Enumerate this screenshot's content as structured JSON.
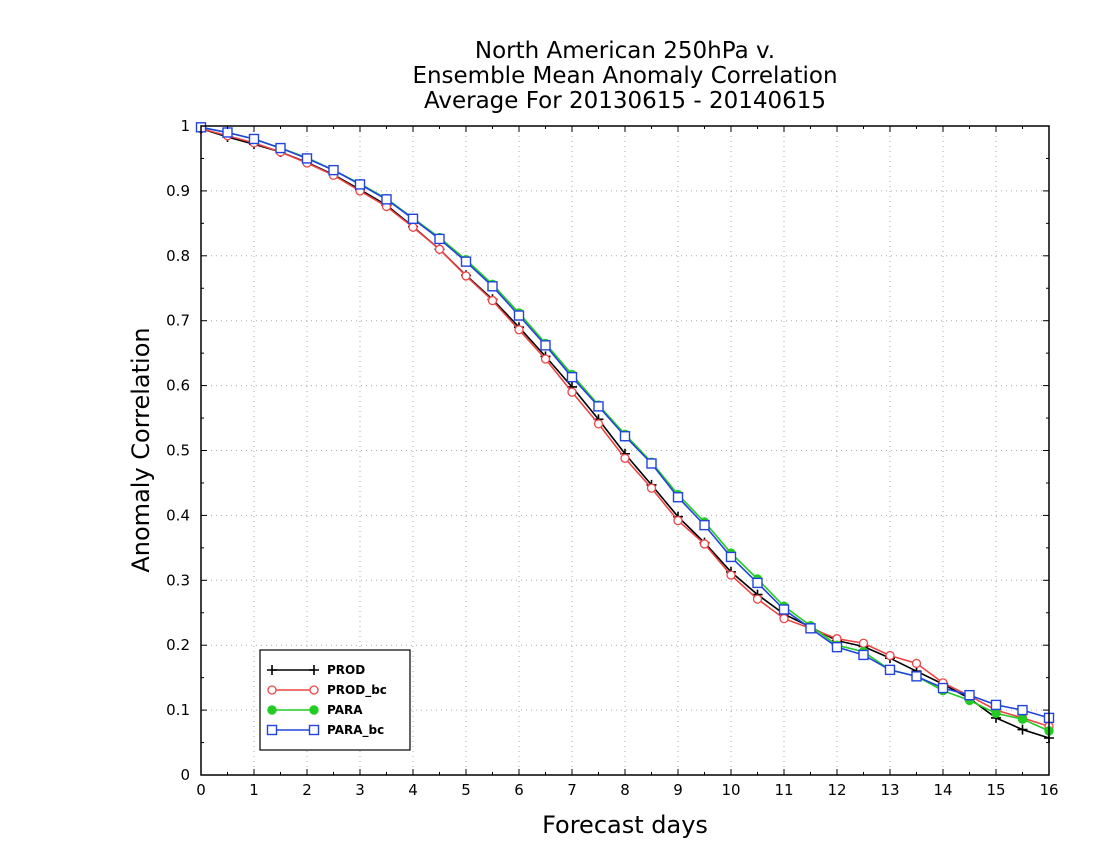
{
  "chart_data": {
    "type": "line",
    "title": [
      "North American 250hPa v.",
      "Ensemble Mean Anomaly Correlation",
      "Average For 20130615 - 20140615"
    ],
    "xlabel": "Forecast days",
    "ylabel": "Anomaly Correlation",
    "xlim": [
      0,
      16
    ],
    "ylim": [
      0,
      1
    ],
    "x_ticks": [
      "0",
      "1",
      "2",
      "3",
      "4",
      "5",
      "6",
      "7",
      "8",
      "9",
      "10",
      "11",
      "12",
      "13",
      "14",
      "15",
      "16"
    ],
    "y_ticks": [
      "0",
      "0.1",
      "0.2",
      "0.3",
      "0.4",
      "0.5",
      "0.6",
      "0.7",
      "0.8",
      "0.9",
      "1"
    ],
    "grid": true,
    "legend_position": "bottom-left",
    "x": [
      0,
      0.5,
      1,
      1.5,
      2,
      2.5,
      3,
      3.5,
      4,
      4.5,
      5,
      5.5,
      6,
      6.5,
      7,
      7.5,
      8,
      8.5,
      9,
      9.5,
      10,
      10.5,
      11,
      11.5,
      12,
      12.5,
      13,
      13.5,
      14,
      14.5,
      15,
      15.5,
      16
    ],
    "series": [
      {
        "name": "PROD",
        "color": "#000000",
        "marker": "plus",
        "values": [
          0.996,
          0.983,
          0.972,
          0.96,
          0.944,
          0.925,
          0.902,
          0.878,
          0.845,
          0.81,
          0.77,
          0.733,
          0.69,
          0.645,
          0.598,
          0.548,
          0.495,
          0.447,
          0.398,
          0.358,
          0.313,
          0.278,
          0.248,
          0.228,
          0.207,
          0.198,
          0.18,
          0.16,
          0.14,
          0.118,
          0.088,
          0.07,
          0.057
        ]
      },
      {
        "name": "PROD_bc",
        "color": "#ee4444",
        "marker": "circle-open",
        "values": [
          0.996,
          0.985,
          0.974,
          0.96,
          0.943,
          0.924,
          0.9,
          0.876,
          0.844,
          0.81,
          0.769,
          0.731,
          0.686,
          0.641,
          0.59,
          0.541,
          0.488,
          0.442,
          0.392,
          0.356,
          0.308,
          0.271,
          0.241,
          0.226,
          0.21,
          0.203,
          0.184,
          0.172,
          0.142,
          0.122,
          0.1,
          0.088,
          0.075
        ]
      },
      {
        "name": "PARA",
        "color": "#22cc22",
        "marker": "circle-filled",
        "values": [
          0.998,
          0.99,
          0.98,
          0.966,
          0.951,
          0.932,
          0.911,
          0.888,
          0.858,
          0.828,
          0.794,
          0.756,
          0.712,
          0.665,
          0.617,
          0.57,
          0.525,
          0.482,
          0.432,
          0.39,
          0.342,
          0.302,
          0.26,
          0.23,
          0.2,
          0.19,
          0.162,
          0.152,
          0.13,
          0.115,
          0.095,
          0.086,
          0.068
        ]
      },
      {
        "name": "PARA_bc",
        "color": "#2244dd",
        "marker": "square-open",
        "values": [
          0.998,
          0.99,
          0.98,
          0.966,
          0.95,
          0.932,
          0.91,
          0.887,
          0.857,
          0.826,
          0.791,
          0.753,
          0.708,
          0.662,
          0.613,
          0.568,
          0.522,
          0.48,
          0.428,
          0.385,
          0.336,
          0.296,
          0.255,
          0.226,
          0.197,
          0.185,
          0.162,
          0.152,
          0.134,
          0.123,
          0.108,
          0.1,
          0.088
        ]
      }
    ]
  }
}
